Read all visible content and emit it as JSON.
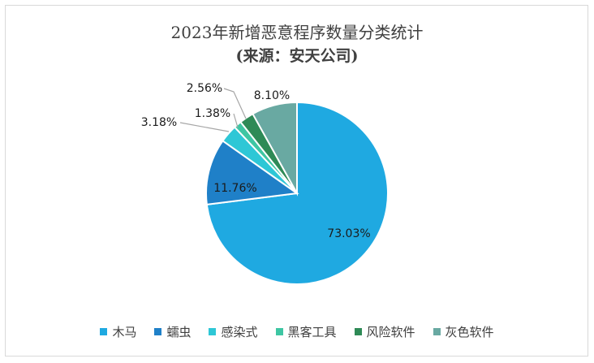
{
  "chart_data": {
    "type": "pie",
    "title": "2023年新增恶意程序数量分类统计",
    "subtitle": "(来源：安天公司)",
    "legend_position": "bottom",
    "slices": [
      {
        "name": "木马",
        "value": 73.03,
        "label": "73.03%",
        "color": "#1fa9e1"
      },
      {
        "name": "蠕虫",
        "value": 11.76,
        "label": "11.76%",
        "color": "#1f80c8"
      },
      {
        "name": "感染式",
        "value": 3.18,
        "label": "3.18%",
        "color": "#2ec7d6"
      },
      {
        "name": "黑客工具",
        "value": 1.38,
        "label": "1.38%",
        "color": "#3ec6a3"
      },
      {
        "name": "风险软件",
        "value": 2.56,
        "label": "2.56%",
        "color": "#2e8a56"
      },
      {
        "name": "灰色软件",
        "value": 8.1,
        "label": "8.10%",
        "color": "#69a9a2"
      }
    ]
  }
}
